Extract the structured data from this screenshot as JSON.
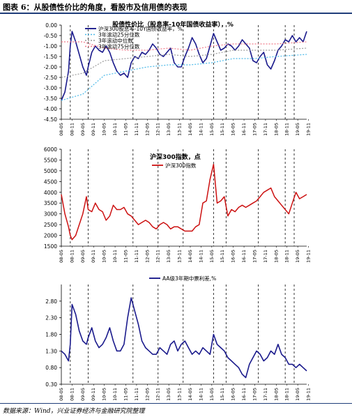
{
  "figure": {
    "title": "图表 6：从股债性价比的角度，看股市及信用债的表现",
    "source": "数据来源：Wind，兴业证券经济与金融研究院整理"
  },
  "colors": {
    "rule": "#1f3d7a",
    "navy": "#1a1a8c",
    "red": "#cc1010",
    "cyan": "#49b8e8",
    "pink": "#f07a8a",
    "grey": "#9a9a9a",
    "dash": "#222222"
  },
  "chart_data": [
    {
      "type": "line",
      "title": "股债性价比（股息率-10年国债收益率），%",
      "x_range": [
        "2008-05",
        "2019-10"
      ],
      "ylim": [
        -4.5,
        0.0
      ],
      "y_ticks": [
        "0.00",
        "-0.50",
        "-1.00",
        "-1.50",
        "-2.00",
        "-2.50",
        "-3.00",
        "-3.50",
        "-4.00",
        "-4.50"
      ],
      "x_ticks": [
        "08-05",
        "08-11",
        "09-05",
        "09-11",
        "10-05",
        "10-11",
        "11-05",
        "11-11",
        "12-05",
        "12-11",
        "13-05",
        "13-11",
        "14-05",
        "14-11",
        "15-05",
        "15-11",
        "16-05",
        "16-11",
        "17-05",
        "17-11",
        "18-05",
        "18-11",
        "19-05",
        "19-11"
      ],
      "legend": [
        "沪深300股息率-10Y国债收益率，%",
        "3年滚动25分位数",
        "3年滚动中位数",
        "3年滚动75分位数"
      ],
      "markers": [
        "2008-10",
        "2009-08",
        "2011-09",
        "2012-11",
        "2014-01",
        "2015-06",
        "2016-01",
        "2017-07",
        "2018-10",
        "2019-03"
      ],
      "series": [
        {
          "name": "沪深300股息率-10Y国债收益率，%",
          "x": [
            "2008-05",
            "2008-07",
            "2008-09",
            "2008-10",
            "2008-11",
            "2009-01",
            "2009-03",
            "2009-05",
            "2009-07",
            "2009-08",
            "2009-10",
            "2009-12",
            "2010-02",
            "2010-04",
            "2010-06",
            "2010-08",
            "2010-10",
            "2010-12",
            "2011-02",
            "2011-04",
            "2011-06",
            "2011-08",
            "2011-10",
            "2011-12",
            "2012-02",
            "2012-04",
            "2012-06",
            "2012-08",
            "2012-10",
            "2012-12",
            "2013-02",
            "2013-04",
            "2013-06",
            "2013-08",
            "2013-10",
            "2013-12",
            "2014-02",
            "2014-04",
            "2014-06",
            "2014-08",
            "2014-10",
            "2014-12",
            "2015-02",
            "2015-04",
            "2015-06",
            "2015-08",
            "2015-10",
            "2015-12",
            "2016-02",
            "2016-04",
            "2016-06",
            "2016-08",
            "2016-10",
            "2016-12",
            "2017-02",
            "2017-04",
            "2017-06",
            "2017-08",
            "2017-10",
            "2017-12",
            "2018-02",
            "2018-04",
            "2018-06",
            "2018-08",
            "2018-10",
            "2018-12",
            "2019-02",
            "2019-04",
            "2019-06",
            "2019-08",
            "2019-10"
          ],
          "values": [
            -3.6,
            -3.2,
            -2.2,
            -1.0,
            -0.3,
            -0.8,
            -1.4,
            -2.0,
            -2.4,
            -2.0,
            -1.3,
            -1.0,
            -1.2,
            -1.3,
            -1.0,
            -1.3,
            -1.8,
            -2.2,
            -2.4,
            -2.3,
            -2.5,
            -1.8,
            -1.5,
            -1.6,
            -1.3,
            -1.4,
            -1.2,
            -0.9,
            -1.1,
            -1.4,
            -1.5,
            -1.3,
            -1.1,
            -1.8,
            -2.0,
            -2.0,
            -1.5,
            -1.1,
            -0.6,
            -0.9,
            -1.4,
            -1.8,
            -1.6,
            -1.0,
            -0.4,
            -0.8,
            -1.2,
            -1.1,
            -0.9,
            -1.0,
            -1.2,
            -1.0,
            -0.7,
            -0.9,
            -1.1,
            -1.7,
            -1.8,
            -1.5,
            -1.3,
            -1.9,
            -2.1,
            -1.7,
            -1.2,
            -1.0,
            -0.7,
            -0.8,
            -0.5,
            -0.8,
            -0.6,
            -0.8,
            -0.3
          ]
        },
        {
          "name": "3年滚动25分位数",
          "x": [
            "2008-05",
            "2009-05",
            "2010-05",
            "2011-05",
            "2012-05",
            "2013-05",
            "2014-05",
            "2015-05",
            "2016-05",
            "2017-05",
            "2018-05",
            "2019-10"
          ],
          "values": [
            -3.6,
            -3.3,
            -2.4,
            -2.2,
            -2.0,
            -1.9,
            -1.9,
            -1.8,
            -1.6,
            -1.6,
            -1.5,
            -1.4
          ]
        },
        {
          "name": "3年滚动中位数",
          "x": [
            "2008-05",
            "2009-05",
            "2010-05",
            "2011-05",
            "2012-05",
            "2013-05",
            "2014-05",
            "2015-05",
            "2016-05",
            "2017-05",
            "2018-05",
            "2019-10"
          ],
          "values": [
            -2.5,
            -2.3,
            -1.7,
            -1.6,
            -1.5,
            -1.4,
            -1.5,
            -1.4,
            -1.2,
            -1.2,
            -1.2,
            -1.1
          ]
        },
        {
          "name": "3年滚动75分位数",
          "x": [
            "2008-05",
            "2009-05",
            "2010-05",
            "2011-05",
            "2012-05",
            "2013-05",
            "2014-05",
            "2015-05",
            "2016-05",
            "2017-05",
            "2018-05",
            "2019-10"
          ],
          "values": [
            -0.8,
            -0.8,
            -1.1,
            -1.2,
            -1.2,
            -1.1,
            -1.2,
            -1.0,
            -0.9,
            -0.9,
            -0.9,
            -0.8
          ]
        }
      ]
    },
    {
      "type": "line",
      "title": "沪深300指数，点",
      "x_range": [
        "2008-05",
        "2019-10"
      ],
      "ylim": [
        1500,
        6000
      ],
      "y_ticks": [
        "6000",
        "5500",
        "5000",
        "4500",
        "4000",
        "3500",
        "3000",
        "2500",
        "2000",
        "1500"
      ],
      "x_ticks": [
        "08-05",
        "08-11",
        "09-05",
        "09-11",
        "10-05",
        "10-11",
        "11-05",
        "11-11",
        "12-05",
        "12-11",
        "13-05",
        "13-11",
        "14-05",
        "14-11",
        "15-05",
        "15-11",
        "16-05",
        "16-11",
        "17-05",
        "17-11",
        "18-05",
        "18-11",
        "19-05",
        "19-11"
      ],
      "legend": [
        "沪深300指数"
      ],
      "markers": [
        "2008-10",
        "2009-08",
        "2011-09",
        "2012-11",
        "2014-01",
        "2015-06",
        "2016-01",
        "2017-07",
        "2018-10",
        "2019-03"
      ],
      "series": [
        {
          "name": "沪深300指数",
          "x": [
            "2008-05",
            "2008-07",
            "2008-09",
            "2008-10",
            "2008-11",
            "2009-01",
            "2009-03",
            "2009-05",
            "2009-07",
            "2009-08",
            "2009-10",
            "2009-12",
            "2010-02",
            "2010-04",
            "2010-06",
            "2010-08",
            "2010-10",
            "2010-12",
            "2011-02",
            "2011-04",
            "2011-06",
            "2011-08",
            "2011-10",
            "2011-12",
            "2012-02",
            "2012-04",
            "2012-06",
            "2012-08",
            "2012-10",
            "2012-12",
            "2013-02",
            "2013-04",
            "2013-06",
            "2013-08",
            "2013-10",
            "2013-12",
            "2014-02",
            "2014-04",
            "2014-06",
            "2014-08",
            "2014-10",
            "2014-12",
            "2015-02",
            "2015-04",
            "2015-06",
            "2015-08",
            "2015-10",
            "2015-12",
            "2016-02",
            "2016-04",
            "2016-06",
            "2016-08",
            "2016-10",
            "2016-12",
            "2017-02",
            "2017-04",
            "2017-06",
            "2017-08",
            "2017-10",
            "2017-12",
            "2018-02",
            "2018-04",
            "2018-06",
            "2018-08",
            "2018-10",
            "2018-12",
            "2019-02",
            "2019-04",
            "2019-06",
            "2019-08",
            "2019-10"
          ],
          "values": [
            3900,
            3000,
            2400,
            2000,
            1800,
            2000,
            2500,
            3000,
            3800,
            3200,
            3100,
            3500,
            3200,
            3100,
            2700,
            2900,
            3400,
            3200,
            3200,
            3300,
            3000,
            2900,
            2700,
            2500,
            2600,
            2700,
            2600,
            2400,
            2300,
            2500,
            2600,
            2500,
            2300,
            2400,
            2400,
            2300,
            2200,
            2200,
            2200,
            2400,
            2500,
            3500,
            3600,
            4600,
            5300,
            3500,
            3600,
            3800,
            2900,
            3200,
            3100,
            3300,
            3400,
            3300,
            3400,
            3500,
            3600,
            3800,
            4000,
            4100,
            4200,
            3800,
            3600,
            3400,
            3200,
            3000,
            3500,
            4000,
            3700,
            3800,
            3900
          ]
        }
      ]
    },
    {
      "type": "line",
      "title": "",
      "x_range": [
        "2008-05",
        "2019-10"
      ],
      "ylim": [
        0.3,
        3.3
      ],
      "y_ticks": [
        "2.80",
        "2.30",
        "1.80",
        "1.30",
        "0.80",
        "0.30"
      ],
      "x_ticks": [
        "08-05",
        "08-11",
        "09-05",
        "09-11",
        "10-05",
        "10-11",
        "11-05",
        "11-11",
        "12-05",
        "12-11",
        "13-05",
        "13-11",
        "14-05",
        "14-11",
        "15-05",
        "15-11",
        "16-05",
        "16-11",
        "17-05",
        "17-11",
        "18-05",
        "18-11",
        "19-05",
        "19-11"
      ],
      "legend": [
        "AA级3年期中票利差,%"
      ],
      "markers": [
        "2008-10",
        "2009-08",
        "2011-09",
        "2012-11",
        "2014-01",
        "2015-06",
        "2016-01",
        "2017-07",
        "2018-10",
        "2019-03"
      ],
      "series": [
        {
          "name": "AA级3年期中票利差,%",
          "x": [
            "2008-05",
            "2008-07",
            "2008-09",
            "2008-10",
            "2008-11",
            "2009-01",
            "2009-03",
            "2009-05",
            "2009-07",
            "2009-08",
            "2009-10",
            "2009-12",
            "2010-02",
            "2010-04",
            "2010-06",
            "2010-08",
            "2010-10",
            "2010-12",
            "2011-02",
            "2011-04",
            "2011-06",
            "2011-08",
            "2011-10",
            "2011-12",
            "2012-02",
            "2012-04",
            "2012-06",
            "2012-08",
            "2012-10",
            "2012-12",
            "2013-02",
            "2013-04",
            "2013-06",
            "2013-08",
            "2013-10",
            "2013-12",
            "2014-02",
            "2014-04",
            "2014-06",
            "2014-08",
            "2014-10",
            "2014-12",
            "2015-02",
            "2015-04",
            "2015-06",
            "2015-08",
            "2015-10",
            "2015-12",
            "2016-02",
            "2016-04",
            "2016-06",
            "2016-08",
            "2016-10",
            "2016-12",
            "2017-02",
            "2017-04",
            "2017-06",
            "2017-08",
            "2017-10",
            "2017-12",
            "2018-02",
            "2018-04",
            "2018-06",
            "2018-08",
            "2018-10",
            "2018-12",
            "2019-02",
            "2019-04",
            "2019-06",
            "2019-08",
            "2019-10"
          ],
          "values": [
            1.3,
            1.2,
            1.0,
            1.5,
            2.7,
            2.4,
            1.9,
            1.6,
            1.5,
            1.7,
            2.0,
            1.6,
            1.4,
            1.5,
            1.7,
            2.0,
            1.6,
            1.3,
            1.3,
            1.5,
            2.3,
            2.9,
            2.5,
            2.1,
            1.6,
            1.4,
            1.3,
            1.2,
            1.2,
            1.4,
            1.3,
            1.2,
            1.5,
            1.6,
            1.3,
            1.5,
            1.6,
            1.4,
            1.2,
            1.3,
            1.2,
            1.4,
            1.3,
            1.2,
            1.8,
            1.5,
            1.4,
            1.3,
            1.1,
            1.0,
            0.9,
            0.8,
            0.6,
            0.5,
            0.9,
            1.1,
            1.3,
            1.2,
            1.0,
            1.1,
            1.3,
            1.2,
            1.5,
            1.2,
            1.1,
            0.9,
            0.9,
            0.8,
            0.9,
            0.8,
            0.7
          ]
        }
      ]
    }
  ]
}
